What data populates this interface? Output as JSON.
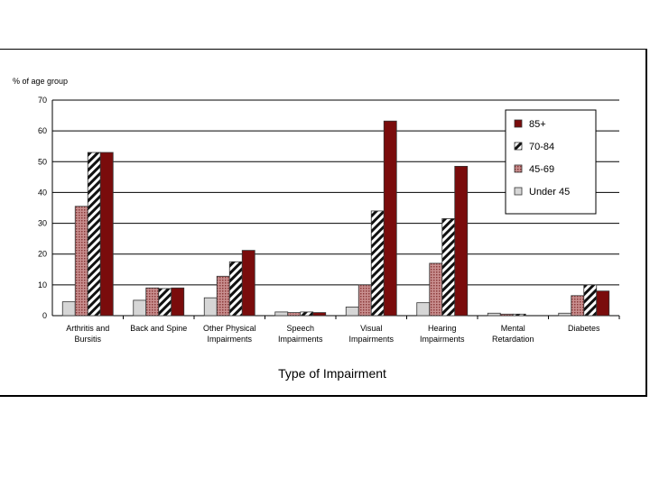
{
  "chart_data": {
    "type": "bar",
    "ylabel": "% of age group",
    "xlabel": "Type of Impairment",
    "ylim": [
      0,
      70
    ],
    "yticks": [
      0,
      10,
      20,
      30,
      40,
      50,
      60,
      70
    ],
    "grid": true,
    "legend_position": "top-right",
    "categories": [
      [
        "Arthritis and",
        "Bursitis"
      ],
      [
        "Back and Spine"
      ],
      [
        "Other Physical",
        "Impairments"
      ],
      [
        "Speech",
        "Impairments"
      ],
      [
        "Visual",
        "Impairments"
      ],
      [
        "Hearing",
        "Impairments"
      ],
      [
        "Mental",
        "Retardation"
      ],
      [
        "Diabetes"
      ]
    ],
    "series": [
      {
        "name": "Under 45",
        "color": "#d8d8d8",
        "values": [
          4.5,
          5,
          5.8,
          1.2,
          2.8,
          4.2,
          0.8,
          0.8
        ]
      },
      {
        "name": "45-69",
        "color": "#b06a6a",
        "values": [
          35.5,
          9,
          12.8,
          1,
          10,
          17,
          0.5,
          6.5
        ]
      },
      {
        "name": "70-84",
        "color": "#ffffff",
        "values": [
          53,
          8.8,
          17.5,
          1.2,
          34,
          31.5,
          0.5,
          10
        ]
      },
      {
        "name": "85+",
        "color": "#7a0c0c",
        "values": [
          53,
          9,
          21.2,
          1,
          63.2,
          48.5,
          0,
          8
        ]
      }
    ],
    "legend_order": [
      "85+",
      "70-84",
      "45-69",
      "Under 45"
    ]
  }
}
